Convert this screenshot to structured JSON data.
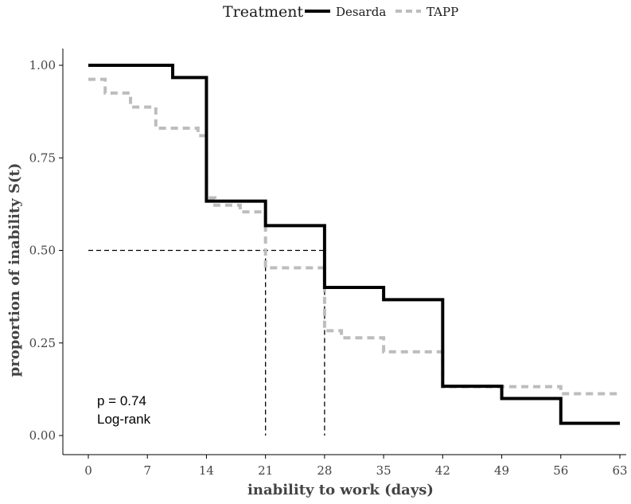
{
  "chart_data": {
    "type": "line",
    "subtype": "kaplan-meier step curve",
    "xlabel": "inability to work (days)",
    "ylabel": "proportion of inability S(t)",
    "xlim": [
      0,
      63
    ],
    "ylim": [
      0,
      1
    ],
    "x_ticks": [
      0,
      7,
      14,
      21,
      28,
      35,
      42,
      49,
      56,
      63
    ],
    "x_tick_labels": [
      "0",
      "7",
      "14",
      "21",
      "28",
      "35",
      "42",
      "49",
      "56",
      "63"
    ],
    "y_ticks": [
      0,
      0.25,
      0.5,
      0.75,
      1
    ],
    "y_tick_labels": [
      "0.00",
      "0.25",
      "0.50",
      "0.75",
      "1.00"
    ],
    "grid": false,
    "legend": {
      "title": "Treatment",
      "position": "top",
      "entries": [
        {
          "name": "Desarda",
          "style": "solid",
          "color": "#000000"
        },
        {
          "name": "TAPP",
          "style": "dashed",
          "color": "#bdbdbd"
        }
      ]
    },
    "series": [
      {
        "name": "Desarda",
        "style": "solid",
        "color": "#000000",
        "steps": [
          [
            0,
            1.0
          ],
          [
            10,
            0.967
          ],
          [
            14,
            0.633
          ],
          [
            21,
            0.567
          ],
          [
            28,
            0.4
          ],
          [
            35,
            0.367
          ],
          [
            42,
            0.133
          ],
          [
            49,
            0.1
          ],
          [
            56,
            0.033
          ],
          [
            63,
            0.033
          ]
        ]
      },
      {
        "name": "TAPP",
        "style": "dashed",
        "color": "#bdbdbd",
        "steps": [
          [
            0,
            0.962
          ],
          [
            2,
            0.925
          ],
          [
            5,
            0.887
          ],
          [
            8,
            0.83
          ],
          [
            13,
            0.81
          ],
          [
            14,
            0.642
          ],
          [
            15,
            0.622
          ],
          [
            18,
            0.604
          ],
          [
            21,
            0.453
          ],
          [
            28,
            0.283
          ],
          [
            30,
            0.264
          ],
          [
            35,
            0.226
          ],
          [
            42,
            0.132
          ],
          [
            56,
            0.113
          ],
          [
            63,
            0.113
          ]
        ]
      }
    ],
    "median_lines": [
      {
        "x": 21,
        "y": 0.5
      },
      {
        "x": 28,
        "y": 0.5
      }
    ],
    "annotation": {
      "lines": [
        "p = 0.74",
        "Log-rank"
      ]
    }
  }
}
